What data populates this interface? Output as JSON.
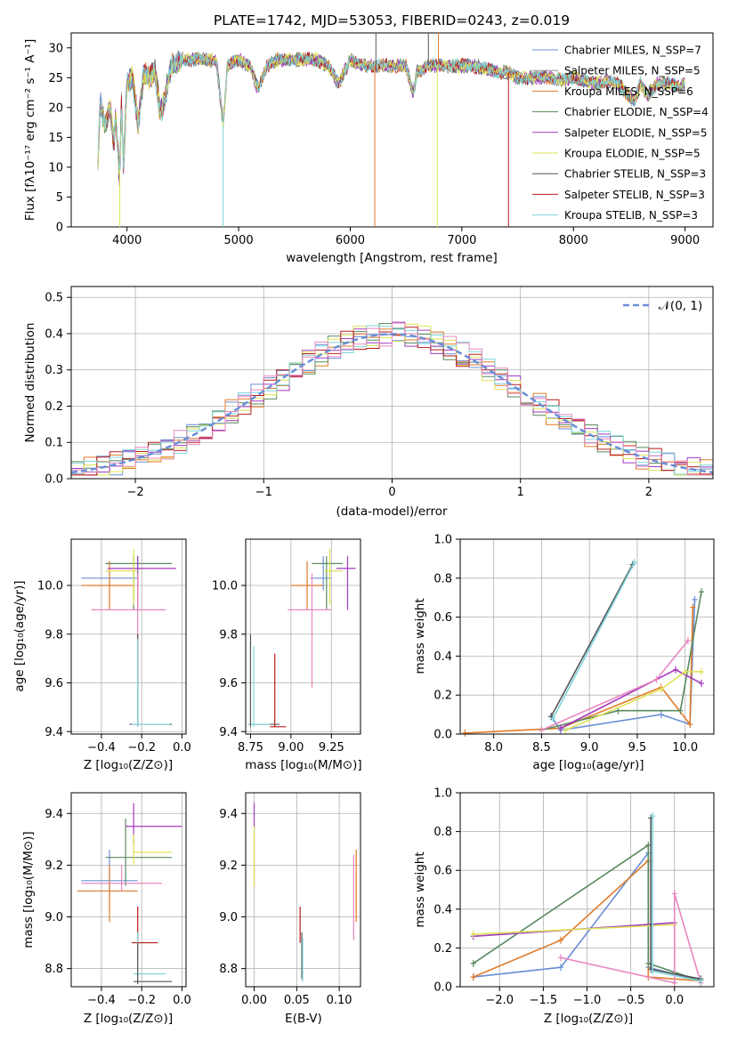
{
  "chart_data": [
    {
      "type": "line",
      "panel": "spectrum",
      "title": "PLATE=1742, MJD=53053, FIBERID=0243, z=0.019",
      "xlabel": "wavelength [Angstrom, rest frame]",
      "ylabel": "Flux [fλ10⁻¹⁷ erg cm⁻² s⁻¹ A⁻¹]",
      "xlim": [
        3500,
        9250
      ],
      "ylim": [
        0,
        32.5
      ],
      "xticks": [
        4000,
        5000,
        6000,
        7000,
        8000,
        9000
      ],
      "yticks": [
        0,
        5,
        10,
        15,
        20,
        25,
        30
      ],
      "grid": false,
      "legend_position": "top-right",
      "spectrum_points": [
        [
          3740,
          11
        ],
        [
          3760,
          21
        ],
        [
          3800,
          17
        ],
        [
          3850,
          20
        ],
        [
          3880,
          14
        ],
        [
          3900,
          19
        ],
        [
          3933,
          8
        ],
        [
          3950,
          21
        ],
        [
          3968,
          10
        ],
        [
          4000,
          24
        ],
        [
          4050,
          25
        ],
        [
          4101,
          17
        ],
        [
          4150,
          26
        ],
        [
          4200,
          25
        ],
        [
          4250,
          26
        ],
        [
          4300,
          19
        ],
        [
          4340,
          22
        ],
        [
          4400,
          27
        ],
        [
          4500,
          28
        ],
        [
          4600,
          28
        ],
        [
          4700,
          28
        ],
        [
          4800,
          28
        ],
        [
          4861,
          17
        ],
        [
          4900,
          27
        ],
        [
          5000,
          28
        ],
        [
          5100,
          27
        ],
        [
          5175,
          23
        ],
        [
          5250,
          27
        ],
        [
          5350,
          28
        ],
        [
          5500,
          28
        ],
        [
          5600,
          28
        ],
        [
          5700,
          28
        ],
        [
          5800,
          27
        ],
        [
          5895,
          24
        ],
        [
          6000,
          28
        ],
        [
          6100,
          27
        ],
        [
          6200,
          27
        ],
        [
          6300,
          27
        ],
        [
          6400,
          27
        ],
        [
          6500,
          27
        ],
        [
          6563,
          22
        ],
        [
          6600,
          26
        ],
        [
          6700,
          27
        ],
        [
          6800,
          27
        ],
        [
          6900,
          27
        ],
        [
          7000,
          27
        ],
        [
          7100,
          27
        ],
        [
          7200,
          26.5
        ],
        [
          7300,
          26
        ],
        [
          7400,
          26
        ],
        [
          7500,
          25
        ],
        [
          7600,
          25
        ],
        [
          7700,
          25
        ],
        [
          7800,
          25
        ],
        [
          7900,
          24.5
        ],
        [
          8000,
          25
        ],
        [
          8100,
          24.5
        ],
        [
          8200,
          24
        ],
        [
          8300,
          24.5
        ],
        [
          8400,
          24
        ],
        [
          8498,
          22
        ],
        [
          8542,
          21
        ],
        [
          8600,
          24
        ],
        [
          8662,
          22
        ],
        [
          8750,
          24
        ],
        [
          8850,
          24
        ],
        [
          8950,
          23.5
        ],
        [
          9000,
          24
        ]
      ],
      "series": [
        {
          "name": "Chabrier MILES, N_SSP=7",
          "color": "#6a8fd6"
        },
        {
          "name": "Salpeter MILES, N_SSP=5",
          "color": "#999999"
        },
        {
          "name": "Kroupa MILES, N_SSP=6",
          "color": "#e07b2a"
        },
        {
          "name": "Chabrier ELODIE, N_SSP=4",
          "color": "#5a8a5f"
        },
        {
          "name": "Salpeter ELODIE, N_SSP=5",
          "color": "#a33bbd"
        },
        {
          "name": "Kroupa ELODIE, N_SSP=5",
          "color": "#dde354"
        },
        {
          "name": "Chabrier STELIB, N_SSP=3",
          "color": "#555555"
        },
        {
          "name": "Salpeter STELIB, N_SSP=3",
          "color": "#b71c1c"
        },
        {
          "name": "Kroupa STELIB, N_SSP=3",
          "color": "#7fd4da"
        }
      ]
    },
    {
      "type": "line",
      "panel": "residuals",
      "xlabel": "(data-model)/error",
      "ylabel": "Normed distribution",
      "xlim": [
        -2.5,
        2.5
      ],
      "ylim": [
        0,
        0.53
      ],
      "xticks": [
        -2,
        -1,
        0,
        1,
        2
      ],
      "yticks": [
        0.0,
        0.1,
        0.2,
        0.3,
        0.4,
        0.5
      ],
      "grid": true,
      "legend_position": "top-right",
      "gaussian_label": "𝒩(0, 1)",
      "gaussian_color": "#6a8fd6",
      "bin_width": 0.1,
      "histogram_colors": [
        "#6a8fd6",
        "#e07b2a",
        "#5a8a5f",
        "#a33bbd",
        "#dde354",
        "#b71c1c",
        "#7fd4da",
        "#e887c0"
      ]
    },
    {
      "type": "scatter",
      "panel": "Z-age",
      "xlabel": "Z [log₁₀(Z/Z⊙)]",
      "ylabel": "age  [log₁₀(age/yr)]",
      "xlim": [
        -0.55,
        0.02
      ],
      "ylim": [
        9.39,
        10.19
      ],
      "xticks": [
        -0.4,
        -0.2,
        0.0
      ],
      "yticks": [
        9.4,
        9.6,
        9.8,
        10.0
      ],
      "grid": true,
      "points": [
        {
          "x": -0.22,
          "y": 10.03,
          "xlo": -0.5,
          "xhi": -0.22,
          "ylo": 9.98,
          "yhi": 10.12,
          "color": "#6a8fd6"
        },
        {
          "x": -0.36,
          "y": 10.0,
          "xlo": -0.5,
          "xhi": -0.24,
          "ylo": 9.9,
          "yhi": 10.1,
          "color": "#e07b2a"
        },
        {
          "x": -0.24,
          "y": 10.09,
          "xlo": -0.38,
          "xhi": -0.05,
          "ylo": 9.9,
          "yhi": 10.12,
          "color": "#5a8a5f"
        },
        {
          "x": -0.22,
          "y": 10.07,
          "xlo": -0.37,
          "xhi": -0.03,
          "ylo": 9.9,
          "yhi": 10.12,
          "color": "#a33bbd"
        },
        {
          "x": -0.24,
          "y": 10.06,
          "xlo": -0.38,
          "xhi": -0.22,
          "ylo": 9.92,
          "yhi": 10.15,
          "color": "#dde354"
        },
        {
          "x": -0.22,
          "y": 9.9,
          "xlo": -0.45,
          "xhi": -0.08,
          "ylo": 9.6,
          "yhi": 10.05,
          "color": "#e887c0"
        },
        {
          "x": -0.22,
          "y": 9.43,
          "xlo": -0.26,
          "xhi": -0.05,
          "ylo": 9.42,
          "yhi": 9.8,
          "color": "#555555"
        },
        {
          "x": -0.22,
          "y": 9.43,
          "xlo": -0.25,
          "xhi": -0.06,
          "ylo": 9.42,
          "yhi": 9.78,
          "color": "#7fd4da"
        }
      ]
    },
    {
      "type": "scatter",
      "panel": "mass-age",
      "xlabel": "mass [log₁₀(M/M⊙)]",
      "ylabel": "",
      "xlim": [
        8.72,
        9.43
      ],
      "ylim": [
        9.39,
        10.19
      ],
      "xticks": [
        8.75,
        9.0,
        9.25
      ],
      "yticks": [
        9.4,
        9.6,
        9.8,
        10.0
      ],
      "grid": true,
      "points": [
        {
          "x": 9.2,
          "y": 10.03,
          "xlo": 9.12,
          "xhi": 9.25,
          "ylo": 9.98,
          "yhi": 10.12,
          "color": "#6a8fd6"
        },
        {
          "x": 9.1,
          "y": 10.0,
          "xlo": 9.0,
          "xhi": 9.2,
          "ylo": 9.9,
          "yhi": 10.1,
          "color": "#e07b2a"
        },
        {
          "x": 9.22,
          "y": 10.09,
          "xlo": 9.13,
          "xhi": 9.32,
          "ylo": 9.9,
          "yhi": 10.12,
          "color": "#5a8a5f"
        },
        {
          "x": 9.35,
          "y": 10.07,
          "xlo": 9.28,
          "xhi": 9.4,
          "ylo": 9.9,
          "yhi": 10.12,
          "color": "#a33bbd"
        },
        {
          "x": 9.24,
          "y": 10.06,
          "xlo": 9.2,
          "xhi": 9.32,
          "ylo": 9.92,
          "yhi": 10.15,
          "color": "#dde354"
        },
        {
          "x": 9.13,
          "y": 9.9,
          "xlo": 8.98,
          "xhi": 9.25,
          "ylo": 9.58,
          "yhi": 10.05,
          "color": "#e887c0"
        },
        {
          "x": 8.75,
          "y": 9.43,
          "xlo": 8.74,
          "xhi": 8.93,
          "ylo": 9.42,
          "yhi": 9.8,
          "color": "#555555"
        },
        {
          "x": 8.77,
          "y": 9.43,
          "xlo": 8.75,
          "xhi": 8.87,
          "ylo": 9.42,
          "yhi": 9.75,
          "color": "#7fd4da"
        },
        {
          "x": 8.9,
          "y": 9.42,
          "xlo": 8.87,
          "xhi": 8.97,
          "ylo": 9.42,
          "yhi": 9.72,
          "color": "#b71c1c"
        }
      ]
    },
    {
      "type": "line",
      "panel": "weight-age",
      "xlabel": "age  [log₁₀(age/yr)]",
      "ylabel": "mass weight",
      "xlim": [
        7.65,
        10.3
      ],
      "ylim": [
        0,
        1.0
      ],
      "xticks": [
        8.0,
        8.5,
        9.0,
        9.5,
        10.0
      ],
      "yticks": [
        0.0,
        0.2,
        0.4,
        0.6,
        0.8,
        1.0
      ],
      "grid": true,
      "series": [
        {
          "color": "#6a8fd6",
          "x": [
            8.6,
            8.7,
            9.75,
            10.05,
            10.1
          ],
          "y": [
            0.09,
            0.02,
            0.1,
            0.05,
            0.69
          ]
        },
        {
          "color": "#e07b2a",
          "x": [
            7.7,
            8.7,
            9.75,
            10.05,
            10.08
          ],
          "y": [
            0.005,
            0.03,
            0.24,
            0.05,
            0.65
          ]
        },
        {
          "color": "#5a8a5f",
          "x": [
            8.5,
            9.3,
            9.95,
            10.17
          ],
          "y": [
            0.02,
            0.12,
            0.12,
            0.73
          ]
        },
        {
          "color": "#a33bbd",
          "x": [
            8.7,
            9.9,
            10.17
          ],
          "y": [
            0.03,
            0.33,
            0.26
          ]
        },
        {
          "color": "#dde354",
          "x": [
            8.75,
            9.75,
            10.0,
            10.17
          ],
          "y": [
            0.02,
            0.23,
            0.32,
            0.32
          ]
        },
        {
          "color": "#e887c0",
          "x": [
            8.5,
            9.7,
            10.03
          ],
          "y": [
            0.02,
            0.28,
            0.48
          ]
        },
        {
          "color": "#555555",
          "x": [
            8.6,
            9.45
          ],
          "y": [
            0.09,
            0.87
          ]
        },
        {
          "color": "#7fd4da",
          "x": [
            8.62,
            9.47
          ],
          "y": [
            0.08,
            0.88
          ]
        }
      ]
    },
    {
      "type": "scatter",
      "panel": "Z-mass",
      "xlabel": "Z [log₁₀(Z/Z⊙)]",
      "ylabel": "mass [log₁₀(M/M⊙)]",
      "xlim": [
        -0.55,
        0.02
      ],
      "ylim": [
        8.73,
        9.48
      ],
      "xticks": [
        -0.4,
        -0.2,
        0.0
      ],
      "yticks": [
        8.8,
        9.0,
        9.2,
        9.4
      ],
      "grid": true,
      "points": [
        {
          "x": -0.36,
          "y": 9.14,
          "xlo": -0.5,
          "xhi": -0.22,
          "ylo": 9.08,
          "yhi": 9.26,
          "color": "#6a8fd6"
        },
        {
          "x": -0.36,
          "y": 9.1,
          "xlo": -0.52,
          "xhi": -0.22,
          "ylo": 8.98,
          "yhi": 9.2,
          "color": "#e07b2a"
        },
        {
          "x": -0.28,
          "y": 9.23,
          "xlo": -0.38,
          "xhi": -0.05,
          "ylo": 9.12,
          "yhi": 9.38,
          "color": "#5a8a5f"
        },
        {
          "x": -0.24,
          "y": 9.35,
          "xlo": -0.28,
          "xhi": 0.0,
          "ylo": 9.28,
          "yhi": 9.44,
          "color": "#a33bbd"
        },
        {
          "x": -0.24,
          "y": 9.25,
          "xlo": -0.24,
          "xhi": -0.05,
          "ylo": 9.2,
          "yhi": 9.32,
          "color": "#dde354"
        },
        {
          "x": -0.3,
          "y": 9.13,
          "xlo": -0.5,
          "xhi": -0.1,
          "ylo": 9.1,
          "yhi": 9.2,
          "color": "#e887c0"
        },
        {
          "x": -0.22,
          "y": 8.9,
          "xlo": -0.25,
          "xhi": -0.12,
          "ylo": 8.85,
          "yhi": 9.04,
          "color": "#b71c1c"
        },
        {
          "x": -0.22,
          "y": 8.78,
          "xlo": -0.24,
          "xhi": -0.08,
          "ylo": 8.75,
          "yhi": 8.94,
          "color": "#7fd4da"
        },
        {
          "x": -0.22,
          "y": 8.75,
          "xlo": -0.24,
          "xhi": -0.05,
          "ylo": 8.74,
          "yhi": 8.9,
          "color": "#555555"
        }
      ]
    },
    {
      "type": "scatter",
      "panel": "EBV-mass",
      "xlabel": "E(B-V)",
      "ylabel": "",
      "xlim": [
        -0.01,
        0.125
      ],
      "ylim": [
        8.73,
        9.48
      ],
      "xticks": [
        0.0,
        0.05,
        0.1
      ],
      "yticks": [
        8.8,
        9.0,
        9.2,
        9.4
      ],
      "grid": true,
      "points": [
        {
          "x": 0.0,
          "y": 9.3,
          "ylo": 9.12,
          "yhi": 9.44,
          "color": "#a33bbd"
        },
        {
          "x": 0.0,
          "y": 9.25,
          "ylo": 9.12,
          "yhi": 9.35,
          "color": "#dde354"
        },
        {
          "x": 0.054,
          "y": 8.95,
          "ylo": 8.9,
          "yhi": 9.04,
          "color": "#b71c1c"
        },
        {
          "x": 0.056,
          "y": 8.85,
          "ylo": 8.76,
          "yhi": 8.94,
          "color": "#555555"
        },
        {
          "x": 0.057,
          "y": 8.82,
          "ylo": 8.75,
          "yhi": 8.92,
          "color": "#7fd4da"
        },
        {
          "x": 0.117,
          "y": 9.1,
          "ylo": 8.91,
          "yhi": 9.24,
          "color": "#e887c0"
        },
        {
          "x": 0.12,
          "y": 9.1,
          "ylo": 8.98,
          "yhi": 9.26,
          "color": "#e07b2a"
        }
      ]
    },
    {
      "type": "line",
      "panel": "weight-Z",
      "xlabel": "Z [log₁₀(Z/Z⊙)]",
      "ylabel": "mass weight",
      "xlim": [
        -2.45,
        0.45
      ],
      "ylim": [
        0,
        1.0
      ],
      "xticks": [
        -2.0,
        -1.5,
        -1.0,
        -0.5,
        0.0
      ],
      "yticks": [
        0.0,
        0.2,
        0.4,
        0.6,
        0.8,
        1.0
      ],
      "grid": true,
      "series": [
        {
          "color": "#6a8fd6",
          "x": [
            -2.3,
            -1.3,
            -0.3,
            -0.3,
            0.3
          ],
          "y": [
            0.05,
            0.1,
            0.69,
            0.1,
            0.03
          ]
        },
        {
          "color": "#e07b2a",
          "x": [
            -2.3,
            -1.3,
            -0.3,
            -0.3,
            0.3
          ],
          "y": [
            0.05,
            0.24,
            0.65,
            0.05,
            0.03
          ]
        },
        {
          "color": "#5a8a5f",
          "x": [
            -2.3,
            -0.3,
            -0.3,
            0.3
          ],
          "y": [
            0.12,
            0.73,
            0.12,
            0.03
          ]
        },
        {
          "color": "#a33bbd",
          "x": [
            -2.3,
            0.0
          ],
          "y": [
            0.26,
            0.33
          ]
        },
        {
          "color": "#dde354",
          "x": [
            -2.3,
            0.0,
            0.0
          ],
          "y": [
            0.27,
            0.32,
            0.02
          ]
        },
        {
          "color": "#e887c0",
          "x": [
            -1.3,
            0.0,
            0.0,
            0.3
          ],
          "y": [
            0.15,
            0.02,
            0.48,
            0.02
          ]
        },
        {
          "color": "#555555",
          "x": [
            -0.27,
            -0.27,
            0.3
          ],
          "y": [
            0.87,
            0.09,
            0.04
          ]
        },
        {
          "color": "#7fd4da",
          "x": [
            -0.25,
            -0.25,
            0.3
          ],
          "y": [
            0.88,
            0.08,
            0.03
          ]
        }
      ]
    }
  ]
}
